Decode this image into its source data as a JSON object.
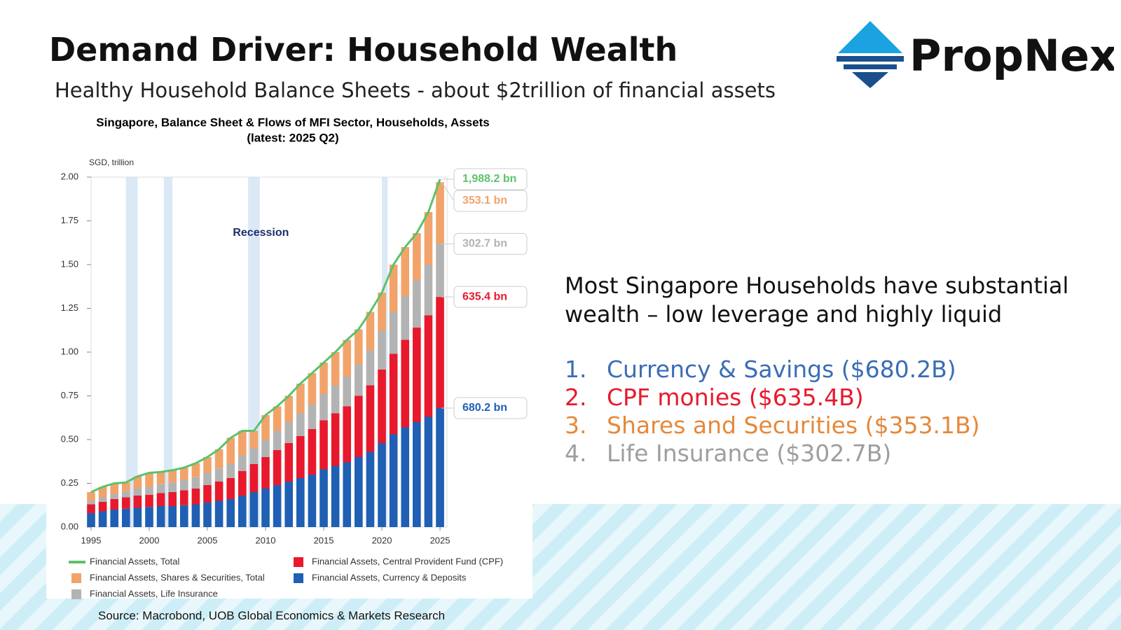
{
  "header": {
    "title": "Demand Driver: Household Wealth",
    "subtitle": "Healthy Household Balance Sheets - about $2trillion of financial assets"
  },
  "logo": {
    "text": "PropNex"
  },
  "chart_data": {
    "type": "bar",
    "stacked": true,
    "title": "Singapore, Balance Sheet & Flows of MFI Sector, Households, Assets",
    "subtitle": "(latest: 2025 Q2)",
    "y_unit": "SGD, trillion",
    "x": [
      1995,
      1996,
      1997,
      1998,
      1999,
      2000,
      2001,
      2002,
      2003,
      2004,
      2005,
      2006,
      2007,
      2008,
      2009,
      2010,
      2011,
      2012,
      2013,
      2014,
      2015,
      2016,
      2017,
      2018,
      2019,
      2020,
      2021,
      2022,
      2023,
      2024,
      2025
    ],
    "xlim": [
      1995,
      2025.6
    ],
    "xticks": [
      1995,
      2000,
      2005,
      2010,
      2015,
      2020,
      2025
    ],
    "ylim": [
      0,
      2
    ],
    "yticks": [
      {
        "value": 0,
        "label": "0.00"
      },
      {
        "value": 0.25,
        "label": "0.25"
      },
      {
        "value": 0.5,
        "label": "0.50"
      },
      {
        "value": 0.75,
        "label": "0.75"
      },
      {
        "value": 1,
        "label": "1.00"
      },
      {
        "value": 1.25,
        "label": "1.25"
      },
      {
        "value": 1.5,
        "label": "1.50"
      },
      {
        "value": 1.75,
        "label": "1.75"
      },
      {
        "value": 2,
        "label": "2.00"
      }
    ],
    "recessions": [
      [
        1998,
        1999
      ],
      [
        2001.25,
        2002
      ],
      [
        2008.5,
        2009.5
      ],
      [
        2020,
        2020.5
      ]
    ],
    "recession_label": "Recession",
    "series": [
      {
        "name": "Financial Assets, Total",
        "type": "line",
        "color": "#5cc26b",
        "end_label": "1,988.2 bn",
        "values": [
          0.2,
          0.23,
          0.25,
          0.255,
          0.29,
          0.31,
          0.315,
          0.325,
          0.34,
          0.365,
          0.4,
          0.445,
          0.51,
          0.55,
          0.55,
          0.64,
          0.69,
          0.75,
          0.82,
          0.88,
          0.94,
          1.0,
          1.07,
          1.13,
          1.23,
          1.34,
          1.5,
          1.6,
          1.68,
          1.8,
          1.9882
        ]
      },
      {
        "name": "Financial Assets, Shares & Securities, Total",
        "type": "bar",
        "color": "#f2a36a",
        "end_label": "353.1 bn",
        "values": [
          0.05,
          0.06,
          0.06,
          0.05,
          0.07,
          0.08,
          0.07,
          0.07,
          0.07,
          0.08,
          0.09,
          0.11,
          0.15,
          0.14,
          0.1,
          0.14,
          0.14,
          0.15,
          0.17,
          0.18,
          0.18,
          0.19,
          0.21,
          0.2,
          0.22,
          0.22,
          0.27,
          0.28,
          0.27,
          0.3,
          0.3531
        ]
      },
      {
        "name": "Financial Assets, Life Insurance",
        "type": "bar",
        "color": "#b3b3b3",
        "end_label": "302.7 bn",
        "values": [
          0.02,
          0.025,
          0.03,
          0.035,
          0.04,
          0.045,
          0.05,
          0.055,
          0.06,
          0.065,
          0.07,
          0.075,
          0.08,
          0.09,
          0.09,
          0.1,
          0.11,
          0.12,
          0.13,
          0.14,
          0.15,
          0.16,
          0.17,
          0.18,
          0.2,
          0.22,
          0.24,
          0.25,
          0.27,
          0.29,
          0.3027
        ]
      },
      {
        "name": "Financial Assets, Central Provident Fund (CPF)",
        "type": "bar",
        "color": "#e8192c",
        "end_label": "635.4 bn",
        "values": [
          0.05,
          0.055,
          0.06,
          0.065,
          0.07,
          0.07,
          0.075,
          0.08,
          0.085,
          0.09,
          0.1,
          0.11,
          0.12,
          0.14,
          0.16,
          0.18,
          0.2,
          0.22,
          0.24,
          0.26,
          0.28,
          0.3,
          0.32,
          0.35,
          0.38,
          0.42,
          0.46,
          0.5,
          0.54,
          0.58,
          0.6354
        ]
      },
      {
        "name": "Financial Assets, Currency & Deposits",
        "type": "bar",
        "color": "#1f5fb4",
        "end_label": "680.2 bn",
        "values": [
          0.08,
          0.09,
          0.1,
          0.105,
          0.11,
          0.115,
          0.12,
          0.12,
          0.125,
          0.13,
          0.14,
          0.15,
          0.16,
          0.18,
          0.2,
          0.22,
          0.24,
          0.26,
          0.28,
          0.3,
          0.33,
          0.35,
          0.37,
          0.4,
          0.43,
          0.48,
          0.53,
          0.57,
          0.6,
          0.63,
          0.6802
        ]
      }
    ]
  },
  "source": "Source: Macrobond, UOB Global Economics & Markets Research",
  "commentary": {
    "text": "Most Singapore Households have substantial wealth – low leverage and highly liquid",
    "items": [
      {
        "number": "1.",
        "text": "Currency & Savings ($680.2B)",
        "color": "#3a6db5"
      },
      {
        "number": "2.",
        "text": "CPF monies ($635.4B)",
        "color": "#e8192c"
      },
      {
        "number": "3.",
        "text": "Shares and Securities ($353.1B)",
        "color": "#e5893a"
      },
      {
        "number": "4.",
        "text": "Life Insurance ($302.7B)",
        "color": "#9e9e9e"
      }
    ]
  }
}
